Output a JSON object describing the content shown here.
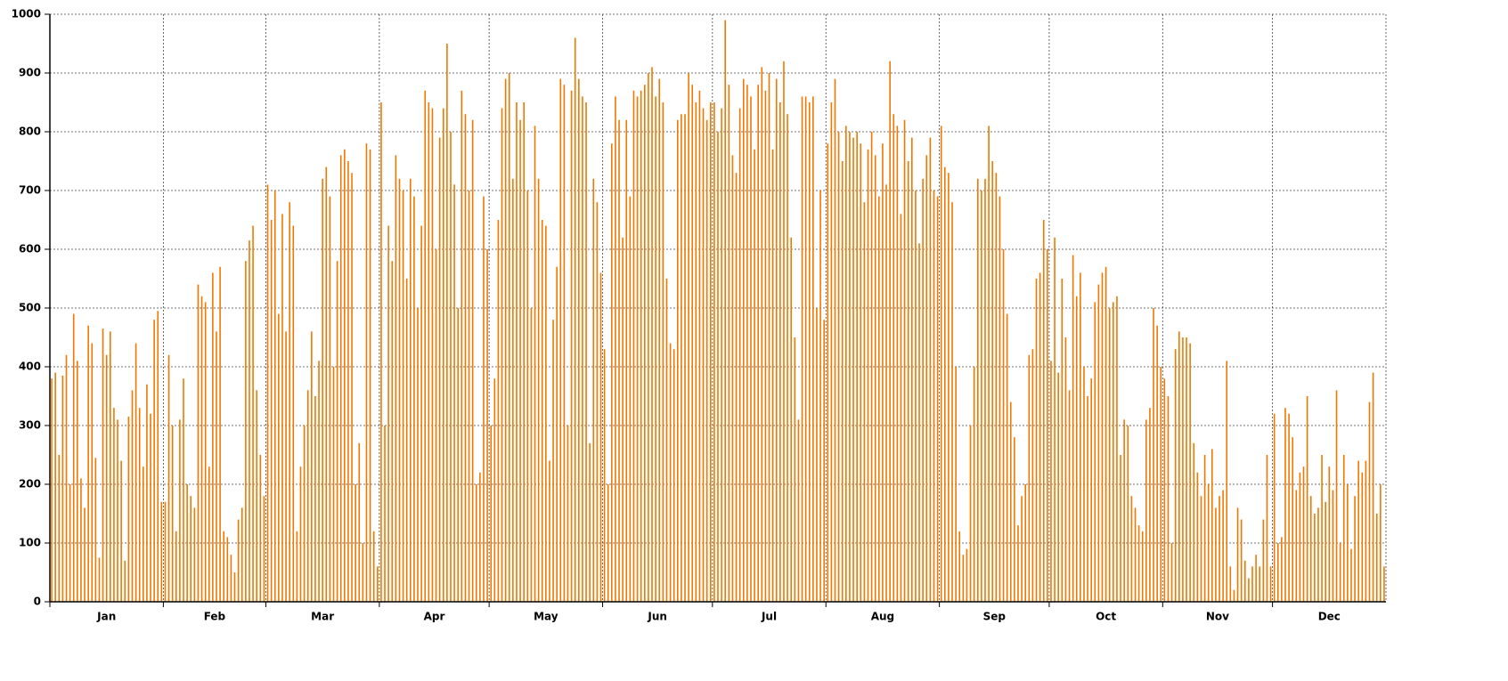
{
  "chart_data": {
    "type": "spike",
    "color": "#f07800",
    "ylim": [
      0,
      1000
    ],
    "yticks": [
      0,
      100,
      200,
      300,
      400,
      500,
      600,
      700,
      800,
      900,
      1000
    ],
    "xlim": [
      0,
      365
    ],
    "xticks": [
      {
        "value": 0,
        "label": "Jan"
      },
      {
        "value": 31,
        "label": "Feb"
      },
      {
        "value": 59,
        "label": "Mar"
      },
      {
        "value": 90,
        "label": "Apr"
      },
      {
        "value": 120,
        "label": "May"
      },
      {
        "value": 151,
        "label": "Jun"
      },
      {
        "value": 181,
        "label": "Jul"
      },
      {
        "value": 212,
        "label": "Aug"
      },
      {
        "value": 243,
        "label": "Sep"
      },
      {
        "value": 273,
        "label": "Oct"
      },
      {
        "value": 304,
        "label": "Nov"
      },
      {
        "value": 334,
        "label": "Dec"
      }
    ],
    "grid": true,
    "values": [
      380,
      390,
      250,
      385,
      420,
      200,
      490,
      410,
      210,
      160,
      470,
      440,
      245,
      75,
      465,
      420,
      460,
      330,
      310,
      240,
      70,
      315,
      360,
      440,
      330,
      230,
      370,
      320,
      480,
      495,
      170,
      170,
      420,
      300,
      120,
      310,
      380,
      200,
      180,
      160,
      540,
      520,
      510,
      230,
      560,
      460,
      570,
      120,
      110,
      80,
      50,
      140,
      160,
      580,
      615,
      640,
      360,
      250,
      180,
      710,
      650,
      700,
      490,
      660,
      460,
      680,
      640,
      120,
      230,
      300,
      360,
      460,
      350,
      410,
      720,
      740,
      690,
      400,
      580,
      760,
      770,
      750,
      730,
      200,
      270,
      100,
      780,
      770,
      120,
      60,
      850,
      300,
      640,
      580,
      760,
      720,
      700,
      550,
      720,
      690,
      500,
      640,
      870,
      850,
      840,
      600,
      790,
      840,
      950,
      800,
      710,
      500,
      870,
      830,
      700,
      820,
      200,
      220,
      690,
      600,
      300,
      380,
      650,
      840,
      890,
      900,
      720,
      850,
      820,
      850,
      700,
      500,
      810,
      720,
      650,
      640,
      240,
      480,
      570,
      890,
      880,
      300,
      870,
      960,
      890,
      860,
      850,
      270,
      720,
      680,
      560,
      430,
      200,
      780,
      860,
      820,
      620,
      820,
      690,
      870,
      860,
      870,
      880,
      900,
      910,
      860,
      890,
      850,
      550,
      440,
      430,
      820,
      830,
      830,
      900,
      880,
      850,
      870,
      840,
      820,
      850,
      850,
      800,
      840,
      990,
      880,
      760,
      730,
      840,
      890,
      880,
      860,
      770,
      880,
      910,
      870,
      900,
      770,
      890,
      850,
      920,
      830,
      620,
      450,
      310,
      860,
      860,
      850,
      860,
      500,
      700,
      480,
      780,
      850,
      890,
      800,
      750,
      810,
      800,
      790,
      800,
      780,
      680,
      770,
      800,
      760,
      690,
      780,
      710,
      920,
      830,
      810,
      660,
      820,
      750,
      790,
      700,
      610,
      720,
      760,
      790,
      700,
      690,
      810,
      740,
      730,
      680,
      400,
      120,
      80,
      90,
      300,
      400,
      720,
      700,
      720,
      810,
      750,
      730,
      690,
      600,
      490,
      340,
      280,
      130,
      180,
      200,
      420,
      430,
      550,
      560,
      650,
      600,
      410,
      620,
      390,
      550,
      450,
      360,
      590,
      520,
      560,
      400,
      350,
      380,
      510,
      540,
      560,
      570,
      500,
      510,
      520,
      250,
      310,
      300,
      180,
      160,
      130,
      120,
      310,
      330,
      500,
      470,
      400,
      380,
      350,
      100,
      430,
      460,
      450,
      450,
      440,
      270,
      220,
      180,
      250,
      200,
      260,
      160,
      180,
      190,
      410,
      60,
      20,
      160,
      140,
      70,
      40,
      60,
      80,
      60,
      140,
      250,
      60,
      320,
      100,
      110,
      330,
      320,
      280,
      190,
      220,
      230,
      350,
      180,
      150,
      160,
      250,
      170,
      230,
      190,
      360,
      100,
      250,
      200,
      90,
      180,
      240,
      220,
      240,
      340,
      390,
      150,
      200,
      60
    ]
  }
}
